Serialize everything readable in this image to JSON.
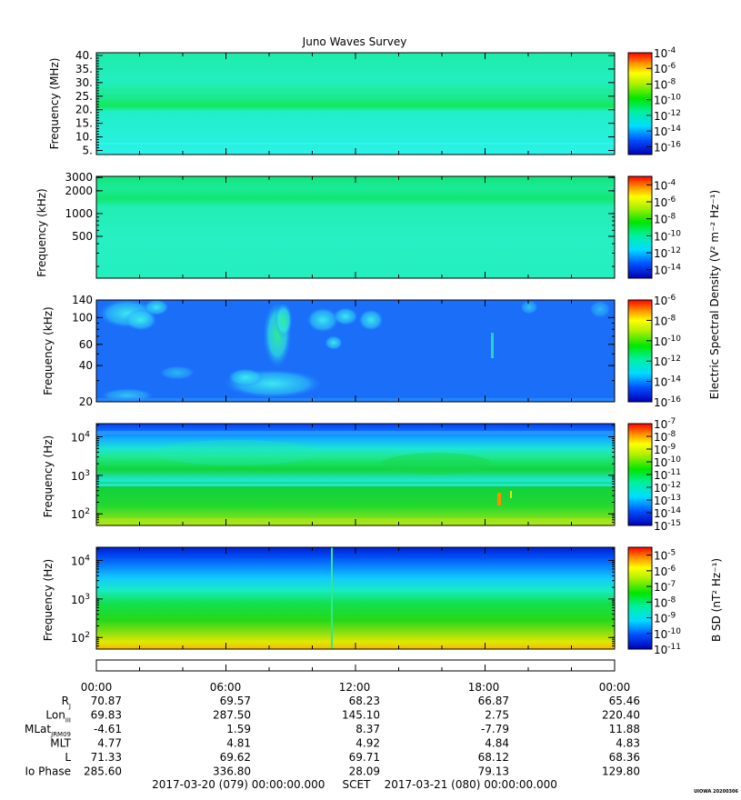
{
  "chart_data": {
    "type": "heatmap",
    "title": "Juno Waves Survey",
    "panels": [
      {
        "id": "p1",
        "ylabel": "Frequency (MHz)",
        "yscale": "linear",
        "ylim": [
          3.5,
          41
        ],
        "yticks": [
          {
            "v": 40,
            "label": "40."
          },
          {
            "v": 35,
            "label": "35."
          },
          {
            "v": 30,
            "label": "30."
          },
          {
            "v": 25,
            "label": "25."
          },
          {
            "v": 20,
            "label": "20."
          },
          {
            "v": 15,
            "label": "15."
          },
          {
            "v": 10,
            "label": "10."
          },
          {
            "v": 5,
            "label": "5."
          }
        ],
        "colorbar": {
          "min_exp": -17,
          "max_exp": -4,
          "labels": [
            -4,
            -6,
            -8,
            -10,
            -12,
            -14,
            -16
          ],
          "unit": ""
        }
      },
      {
        "id": "p2",
        "ylabel": "Frequency (kHz)",
        "yscale": "log",
        "ylim": [
          140,
          3100
        ],
        "yticks": [
          {
            "v": 3000,
            "label": "3000"
          },
          {
            "v": 2000,
            "label": "2000"
          },
          {
            "v": 1000,
            "label": "1000"
          },
          {
            "v": 500,
            "label": "500"
          }
        ],
        "colorbar": {
          "min_exp": -15,
          "max_exp": -3,
          "labels": [
            -4,
            -6,
            -8,
            -10,
            -12,
            -14
          ],
          "unit": ""
        }
      },
      {
        "id": "p3",
        "ylabel": "Frequency (kHz)",
        "yscale": "log",
        "ylim": [
          20,
          140
        ],
        "yticks": [
          {
            "v": 140,
            "label": "140"
          },
          {
            "v": 100,
            "label": "100"
          },
          {
            "v": 60,
            "label": "60"
          },
          {
            "v": 40,
            "label": "40"
          },
          {
            "v": 20,
            "label": "20"
          }
        ],
        "colorbar": {
          "min_exp": -16,
          "max_exp": -6,
          "labels": [
            -6,
            -8,
            -10,
            -12,
            -14,
            -16
          ],
          "unit": "Electric Spectral Density (V² m⁻² Hz⁻¹)"
        }
      },
      {
        "id": "p4",
        "ylabel": "Frequency (Hz)",
        "yscale": "log",
        "ylim": [
          50,
          22000
        ],
        "yticks": [
          {
            "v": 10000,
            "base": "10",
            "exp": "4"
          },
          {
            "v": 1000,
            "base": "10",
            "exp": "3"
          },
          {
            "v": 100,
            "base": "10",
            "exp": "2"
          }
        ],
        "colorbar": {
          "min_exp": -15,
          "max_exp": -7,
          "labels": [
            -7,
            -8,
            -9,
            -10,
            -11,
            -12,
            -13,
            -14,
            -15
          ],
          "unit": ""
        }
      },
      {
        "id": "p5",
        "ylabel": "Frequency (Hz)",
        "yscale": "log",
        "ylim": [
          50,
          22000
        ],
        "yticks": [
          {
            "v": 10000,
            "base": "10",
            "exp": "4"
          },
          {
            "v": 1000,
            "base": "10",
            "exp": "3"
          },
          {
            "v": 100,
            "base": "10",
            "exp": "2"
          }
        ],
        "colorbar": {
          "min_exp": -11,
          "max_exp": -4.5,
          "labels": [
            -5,
            -6,
            -7,
            -8,
            -9,
            -10,
            -11
          ],
          "unit": "B SD (nT² Hz⁻¹)"
        }
      }
    ],
    "x": {
      "tick_labels": [
        "00:00",
        "06:00",
        "12:00",
        "18:00",
        "00:00"
      ],
      "rows": [
        {
          "label": "R",
          "sub": "J",
          "values": [
            "70.87",
            "69.57",
            "68.23",
            "66.87",
            "65.46"
          ]
        },
        {
          "label": "Lon",
          "sub": "III",
          "values": [
            "69.83",
            "287.50",
            "145.10",
            "2.75",
            "220.40"
          ]
        },
        {
          "label": "MLat",
          "sub": "JRM09",
          "values": [
            "-4.61",
            "1.59",
            "8.37",
            "-7.79",
            "11.88"
          ]
        },
        {
          "label": "MLT",
          "sub": "",
          "values": [
            "4.77",
            "4.81",
            "4.92",
            "4.84",
            "4.83"
          ]
        },
        {
          "label": "L",
          "sub": "",
          "values": [
            "71.33",
            "69.62",
            "69.71",
            "68.12",
            "68.36"
          ]
        },
        {
          "label": "Io Phase",
          "sub": "",
          "values": [
            "285.60",
            "336.80",
            "28.09",
            "79.13",
            "129.80"
          ]
        }
      ],
      "range_text": "2017-03-20 (079) 00:00:00.000     SCET    2017-03-21 (080) 00:00:00.000"
    },
    "footer_mark": "UIOWA 20200306"
  }
}
